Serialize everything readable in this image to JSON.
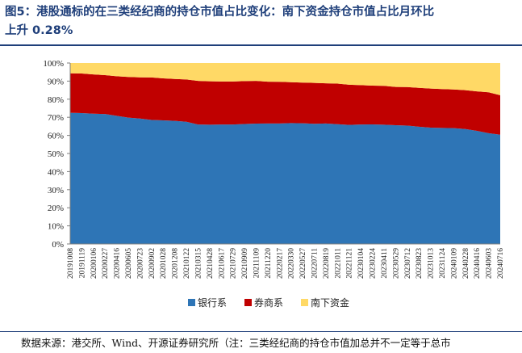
{
  "title": {
    "line1": "图5：港股通标的在三类经纪商的持仓市值占比变化：南下资金持仓市值占比月环比",
    "line2": "上升 0.28%"
  },
  "source": "数据来源：港交所、Wind、开源证券研究所（注：三类经纪商的持仓市值加总并不一定等于总市",
  "chart_data": {
    "type": "area",
    "stacked": true,
    "x": [
      "20191008",
      "20191119",
      "20200106",
      "20200227",
      "20200416",
      "20200605",
      "20200723",
      "20200902",
      "20201028",
      "20201208",
      "20210122",
      "20210315",
      "20210428",
      "20210617",
      "20210729",
      "20210909",
      "20211109",
      "20211220",
      "20220217",
      "20220330",
      "20220527",
      "20220711",
      "20220819",
      "20221011",
      "20221121",
      "20230104",
      "20230224",
      "20230411",
      "20230529",
      "20230712",
      "20230823",
      "20231013",
      "20231124",
      "20240109",
      "20240228",
      "20240416",
      "20240603",
      "20240716"
    ],
    "series": [
      {
        "name": "银行系",
        "color": "#2e75b6",
        "values": [
          72.5,
          72.3,
          72,
          71.8,
          70.8,
          69.8,
          69.3,
          68.5,
          68.3,
          68,
          67.5,
          66,
          65.9,
          66,
          66,
          66.3,
          66.5,
          66.6,
          66.6,
          66.8,
          66.7,
          66.4,
          66.6,
          66.2,
          65.8,
          66,
          66.1,
          65.9,
          65.6,
          65.4,
          64.8,
          64.3,
          64.1,
          64,
          63.5,
          62.5,
          61.2,
          60.4
        ]
      },
      {
        "name": "券商系",
        "color": "#c00000",
        "values": [
          21.8,
          21.9,
          21.7,
          21.5,
          21.9,
          22.5,
          22.8,
          23.5,
          23.2,
          23.2,
          23.4,
          24.1,
          24,
          23.8,
          23.8,
          23.7,
          23.6,
          23.1,
          23,
          22.6,
          22.5,
          22.6,
          22.2,
          22.4,
          22.2,
          21.8,
          21.4,
          21.5,
          21.2,
          21.3,
          21.5,
          21.6,
          21.5,
          21.4,
          21.5,
          21.8,
          22.6,
          21.8
        ]
      },
      {
        "name": "南下资金",
        "color": "#ffd966",
        "values": [
          5.7,
          5.8,
          6.3,
          6.7,
          7.3,
          7.7,
          7.9,
          8,
          8.5,
          8.8,
          9.1,
          9.9,
          10.1,
          10.2,
          10.2,
          10,
          9.9,
          10.3,
          10.4,
          10.6,
          10.8,
          11,
          11.2,
          11.4,
          12,
          12.2,
          12.5,
          12.6,
          13.2,
          13.3,
          13.7,
          14.1,
          14.4,
          14.6,
          15,
          15.7,
          16.2,
          17.8
        ]
      }
    ],
    "y_ticks": [
      "0%",
      "10%",
      "20%",
      "30%",
      "40%",
      "50%",
      "60%",
      "70%",
      "80%",
      "90%",
      "100%"
    ],
    "ylim": [
      0,
      100
    ],
    "legend": "bottom",
    "grid": false
  }
}
